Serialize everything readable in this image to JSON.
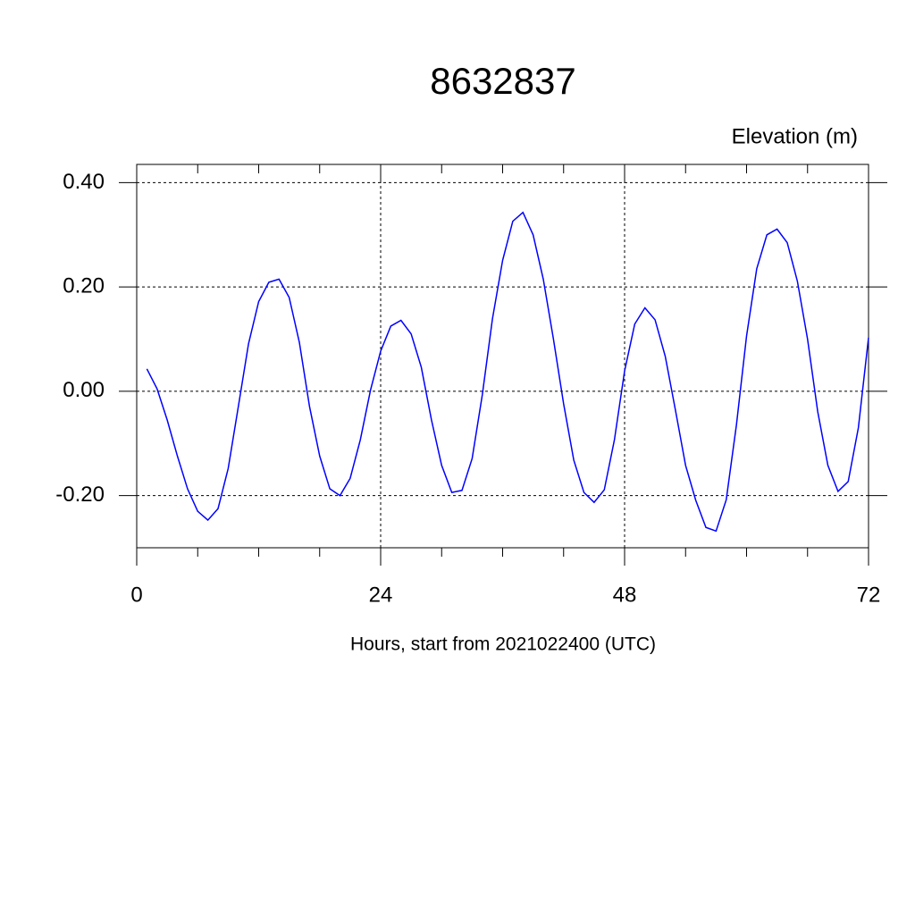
{
  "chart_data": {
    "type": "line",
    "title": "8632837",
    "ylabel": "Elevation (m)",
    "xlabel": "Hours, start from 2021022400 (UTC)",
    "x": [
      1,
      2,
      3,
      4,
      5,
      6,
      7,
      8,
      9,
      10,
      11,
      12,
      13,
      14,
      15,
      16,
      17,
      18,
      19,
      20,
      21,
      22,
      23,
      24,
      25,
      26,
      27,
      28,
      29,
      30,
      31,
      32,
      33,
      34,
      35,
      36,
      37,
      38,
      39,
      40,
      41,
      42,
      43,
      44,
      45,
      46,
      47,
      48,
      49,
      50,
      51,
      52,
      53,
      54,
      55,
      56,
      57,
      58,
      59,
      60,
      61,
      62,
      63,
      64,
      65,
      66,
      67,
      68,
      69,
      70,
      71,
      72
    ],
    "series": [
      {
        "color": "#0000ff",
        "values": [
          0.043,
          0.005,
          -0.055,
          -0.124,
          -0.187,
          -0.23,
          -0.247,
          -0.225,
          -0.148,
          -0.029,
          0.091,
          0.172,
          0.209,
          0.215,
          0.18,
          0.094,
          -0.029,
          -0.124,
          -0.187,
          -0.2,
          -0.167,
          -0.093,
          0.002,
          0.077,
          0.125,
          0.136,
          0.11,
          0.046,
          -0.055,
          -0.142,
          -0.194,
          -0.19,
          -0.129,
          -0.007,
          0.139,
          0.251,
          0.326,
          0.343,
          0.3,
          0.215,
          0.1,
          -0.024,
          -0.132,
          -0.194,
          -0.213,
          -0.189,
          -0.093,
          0.039,
          0.129,
          0.16,
          0.137,
          0.067,
          -0.036,
          -0.142,
          -0.209,
          -0.261,
          -0.268,
          -0.208,
          -0.065,
          0.106,
          0.235,
          0.3,
          0.311,
          0.285,
          0.211,
          0.1,
          -0.039,
          -0.142,
          -0.192,
          -0.173,
          -0.07,
          0.103
        ]
      }
    ],
    "xlim": [
      0,
      72
    ],
    "xticks": [
      0,
      24,
      48,
      72
    ],
    "ylim": [
      -0.3,
      0.435
    ],
    "yticks": [
      {
        "value": -0.2,
        "label": "-0.20"
      },
      {
        "value": 0,
        "label": "0.00"
      },
      {
        "value": 0.2,
        "label": "0.20"
      },
      {
        "value": 0.4,
        "label": "0.40"
      }
    ],
    "grid": true
  }
}
